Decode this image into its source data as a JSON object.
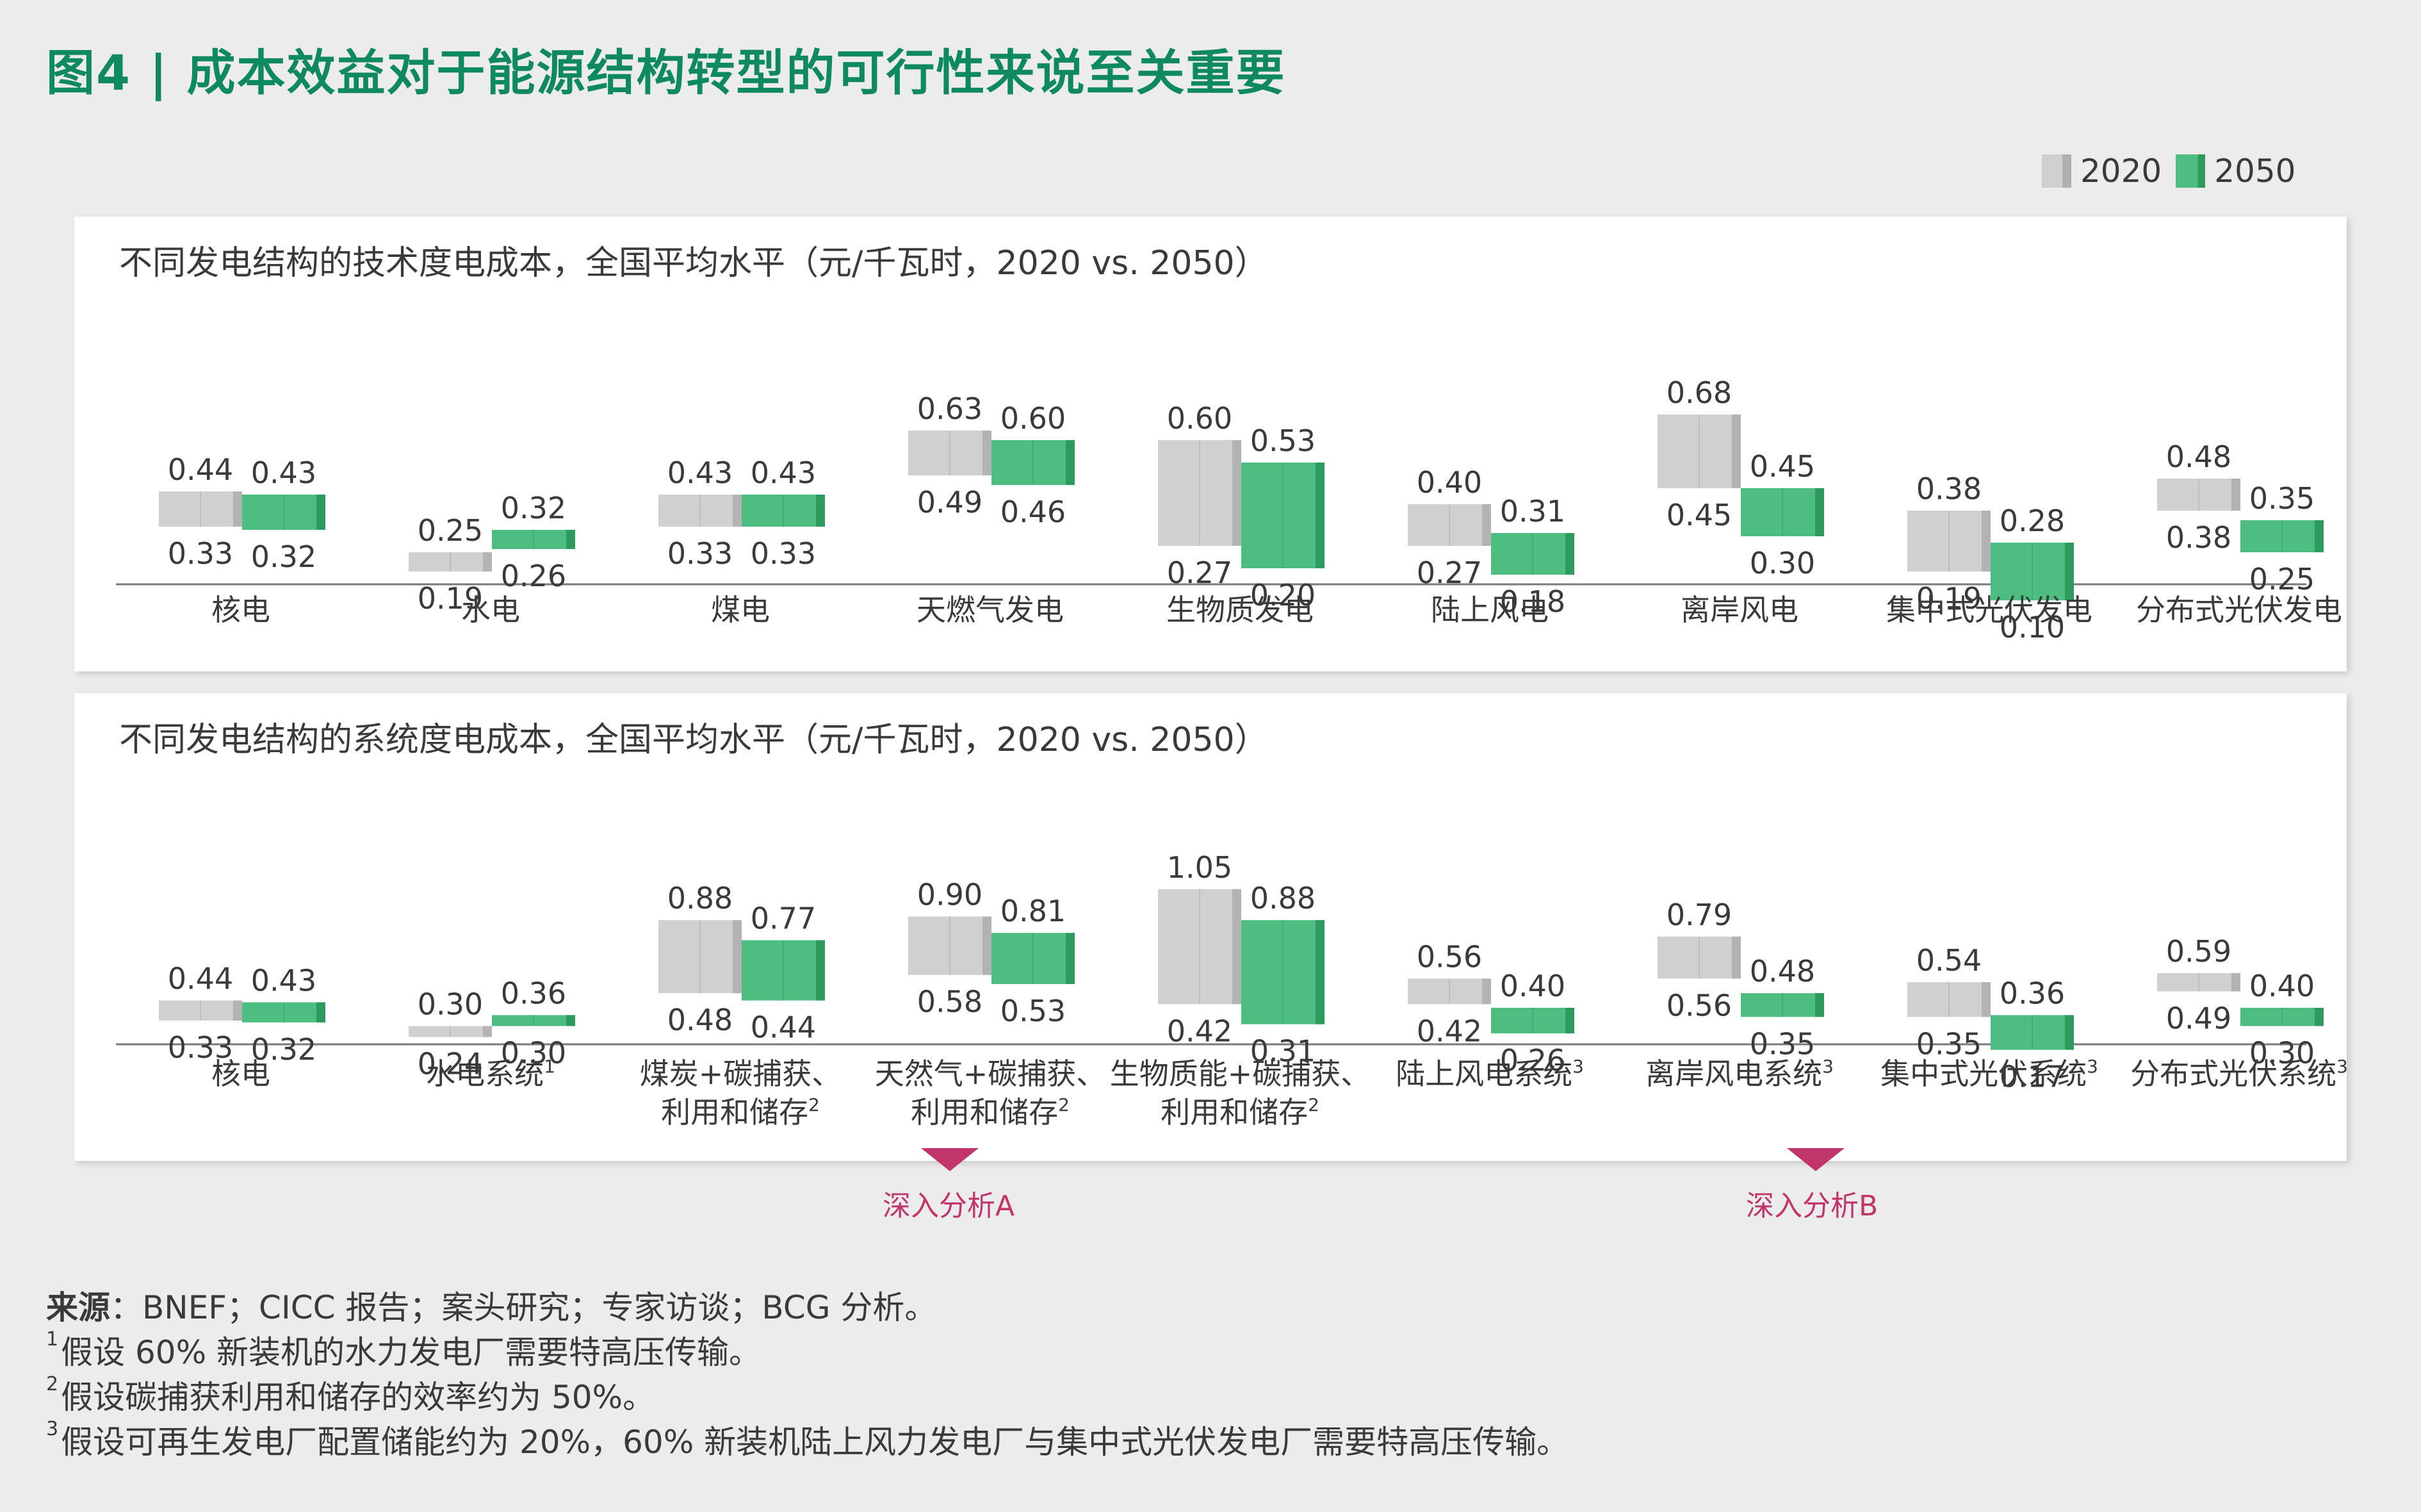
{
  "title": "图4 | 成本效益对于能源结构转型的可行性来说至关重要",
  "legend": [
    {
      "label": "2020",
      "color": "#c8c8c8"
    },
    {
      "label": "2050",
      "color": "#4dbd81"
    }
  ],
  "colors": {
    "gray": "#d0d0d0",
    "gray_edge": "#b3b3b3",
    "green": "#4dbd81",
    "green_edge": "#2e9a5e",
    "accent": "#c2356b",
    "title": "#0f8a5f"
  },
  "chart_data": [
    {
      "type": "bar",
      "subtype": "floating-range",
      "title": "不同发电结构的技术度电成本，全国平均水平（元/千瓦时，2020 vs. 2050）",
      "categories": [
        "核电",
        "水电",
        "煤电",
        "天燃气发电",
        "生物质发电",
        "陆上风电",
        "离岸风电",
        "集中式光伏发电",
        "分布式光伏发电"
      ],
      "series": [
        {
          "name": "2020",
          "high": [
            0.44,
            0.25,
            0.43,
            0.63,
            0.6,
            0.4,
            0.68,
            0.38,
            0.48
          ],
          "low": [
            0.33,
            0.19,
            0.33,
            0.49,
            0.27,
            0.27,
            0.45,
            0.19,
            0.38
          ]
        },
        {
          "name": "2050",
          "high": [
            0.43,
            0.32,
            0.43,
            0.6,
            0.53,
            0.31,
            0.45,
            0.28,
            0.35
          ],
          "low": [
            0.32,
            0.26,
            0.33,
            0.46,
            0.2,
            0.18,
            0.3,
            0.1,
            0.25
          ]
        }
      ]
    },
    {
      "type": "bar",
      "subtype": "floating-range",
      "title": "不同发电结构的系统度电成本，全国平均水平（元/千瓦时，2020 vs. 2050）",
      "categories": [
        {
          "lines": [
            "核电"
          ],
          "sup": ""
        },
        {
          "lines": [
            "水电系统"
          ],
          "sup": "1"
        },
        {
          "lines": [
            "煤炭+碳捕获、",
            "利用和储存"
          ],
          "sup": "2"
        },
        {
          "lines": [
            "天然气+碳捕获、",
            "利用和储存"
          ],
          "sup": "2"
        },
        {
          "lines": [
            "生物质能+碳捕获、",
            "利用和储存"
          ],
          "sup": "2"
        },
        {
          "lines": [
            "陆上风电系统"
          ],
          "sup": "3"
        },
        {
          "lines": [
            "离岸风电系统"
          ],
          "sup": "3"
        },
        {
          "lines": [
            "集中式光伏系统"
          ],
          "sup": "3"
        },
        {
          "lines": [
            "分布式光伏系统"
          ],
          "sup": "3"
        }
      ],
      "series": [
        {
          "name": "2020",
          "high": [
            0.44,
            0.3,
            0.88,
            0.9,
            1.05,
            0.56,
            0.79,
            0.54,
            0.59
          ],
          "low": [
            0.33,
            0.24,
            0.48,
            0.58,
            0.42,
            0.42,
            0.56,
            0.35,
            0.49
          ]
        },
        {
          "name": "2050",
          "high": [
            0.43,
            0.36,
            0.77,
            0.81,
            0.88,
            0.4,
            0.48,
            0.36,
            0.4
          ],
          "low": [
            0.32,
            0.3,
            0.44,
            0.53,
            0.31,
            0.26,
            0.35,
            0.17,
            0.3
          ]
        }
      ]
    }
  ],
  "deep_dive": {
    "a": "深入分析A",
    "b": "深入分析B"
  },
  "sources": {
    "label": "来源",
    "text": "：BNEF；CICC 报告；案头研究；专家访谈；BCG 分析。",
    "notes": [
      {
        "num": "1",
        "text": "假设 60% 新装机的水力发电厂需要特高压传输。"
      },
      {
        "num": "2",
        "text": "假设碳捕获利用和储存的效率约为 50%。"
      },
      {
        "num": "3",
        "text": "假设可再生发电厂配置储能约为 20%，60% 新装机陆上风力发电厂与集中式光伏发电厂需要特高压传输。"
      }
    ]
  }
}
